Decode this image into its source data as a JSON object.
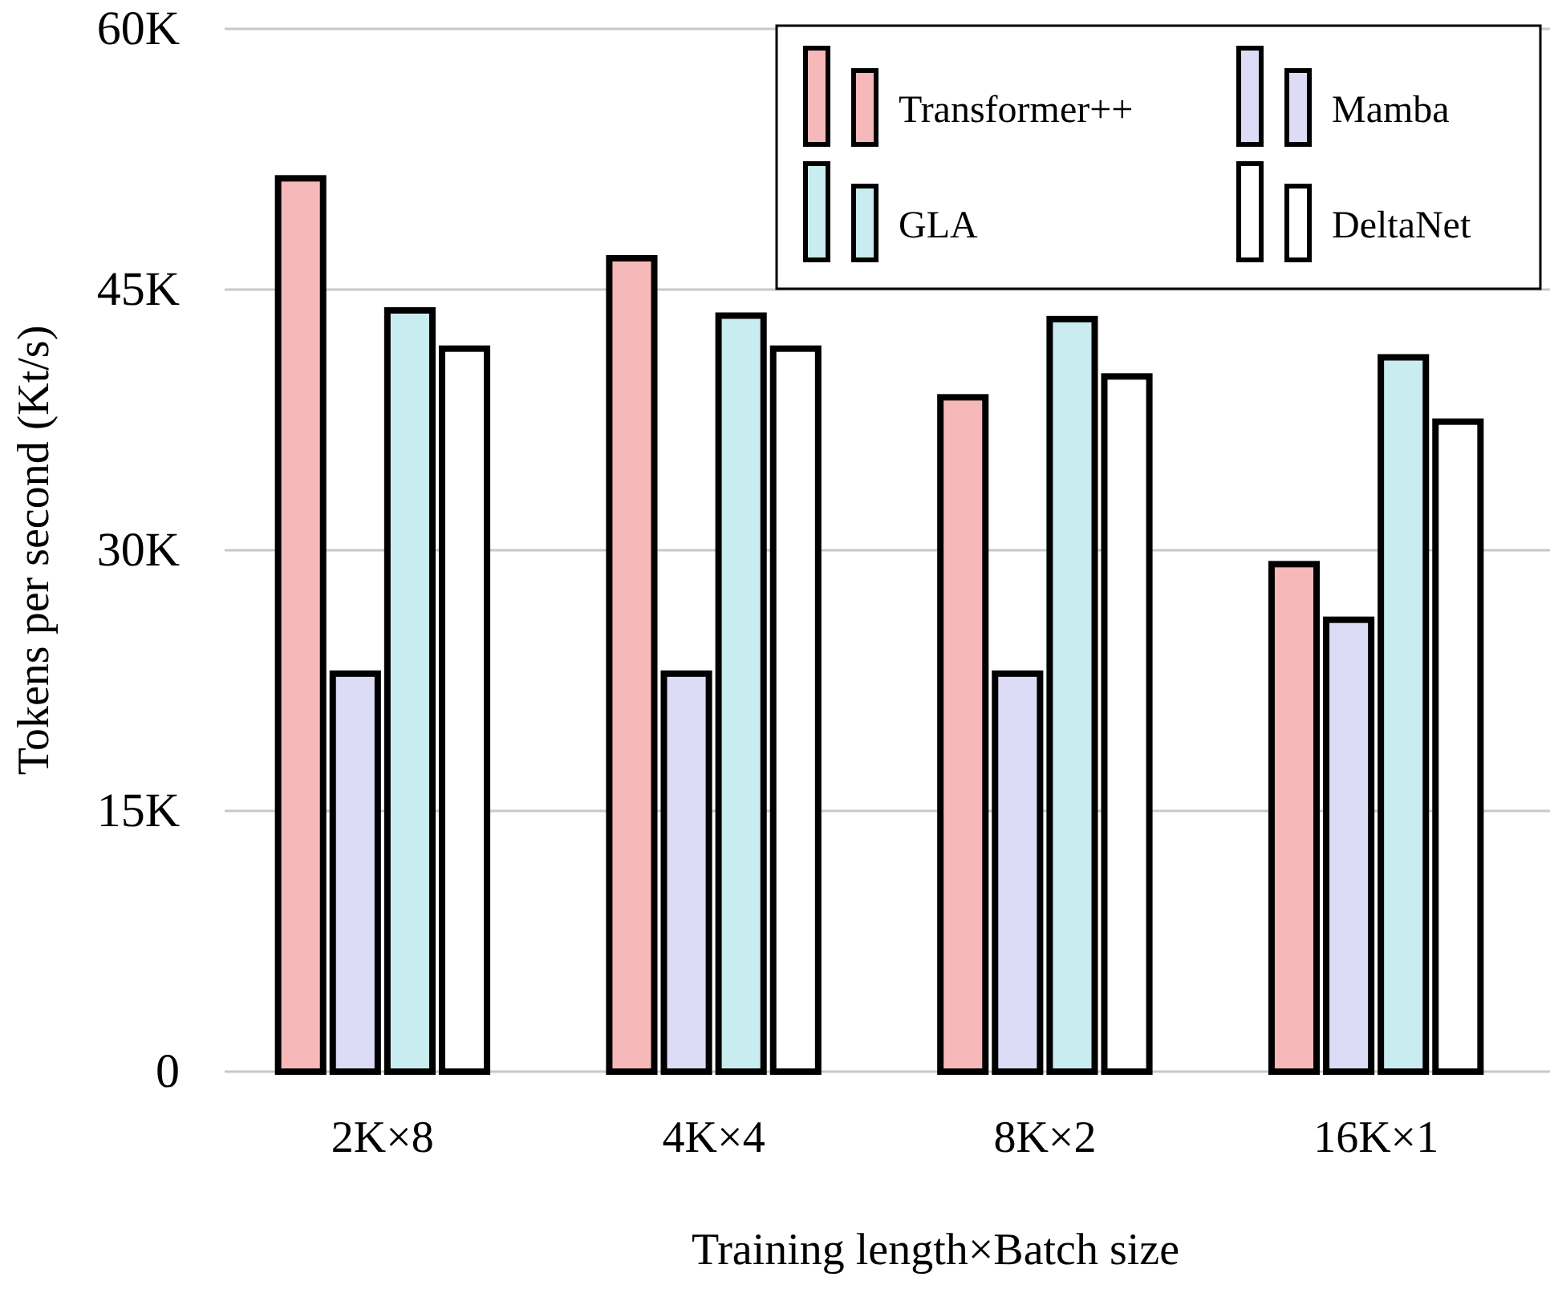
{
  "chart_data": {
    "type": "bar",
    "xlabel": "Training length×Batch size",
    "ylabel": "Tokens per second (Kt/s)",
    "categories": [
      "2K×8",
      "4K×4",
      "8K×2",
      "16K×1"
    ],
    "series": [
      {
        "name": "Transformer++",
        "color": "#f6b8b8",
        "values": [
          51.4,
          46.8,
          38.8,
          29.2
        ]
      },
      {
        "name": "Mamba",
        "color": "#dcdcf6",
        "values": [
          22.9,
          22.9,
          22.9,
          26.0
        ]
      },
      {
        "name": "GLA",
        "color": "#c9ecf0",
        "values": [
          43.8,
          43.5,
          43.3,
          41.1
        ]
      },
      {
        "name": "DeltaNet",
        "color": "#ffffff",
        "values": [
          41.6,
          41.6,
          40.0,
          37.4
        ]
      }
    ],
    "ylim": [
      0,
      60
    ],
    "yticks": [
      {
        "value": 0,
        "label": "0"
      },
      {
        "value": 15,
        "label": "15K"
      },
      {
        "value": 30,
        "label": "30K"
      },
      {
        "value": 45,
        "label": "45K"
      },
      {
        "value": 60,
        "label": "60K"
      }
    ],
    "grid": "y",
    "legend": "top right"
  }
}
